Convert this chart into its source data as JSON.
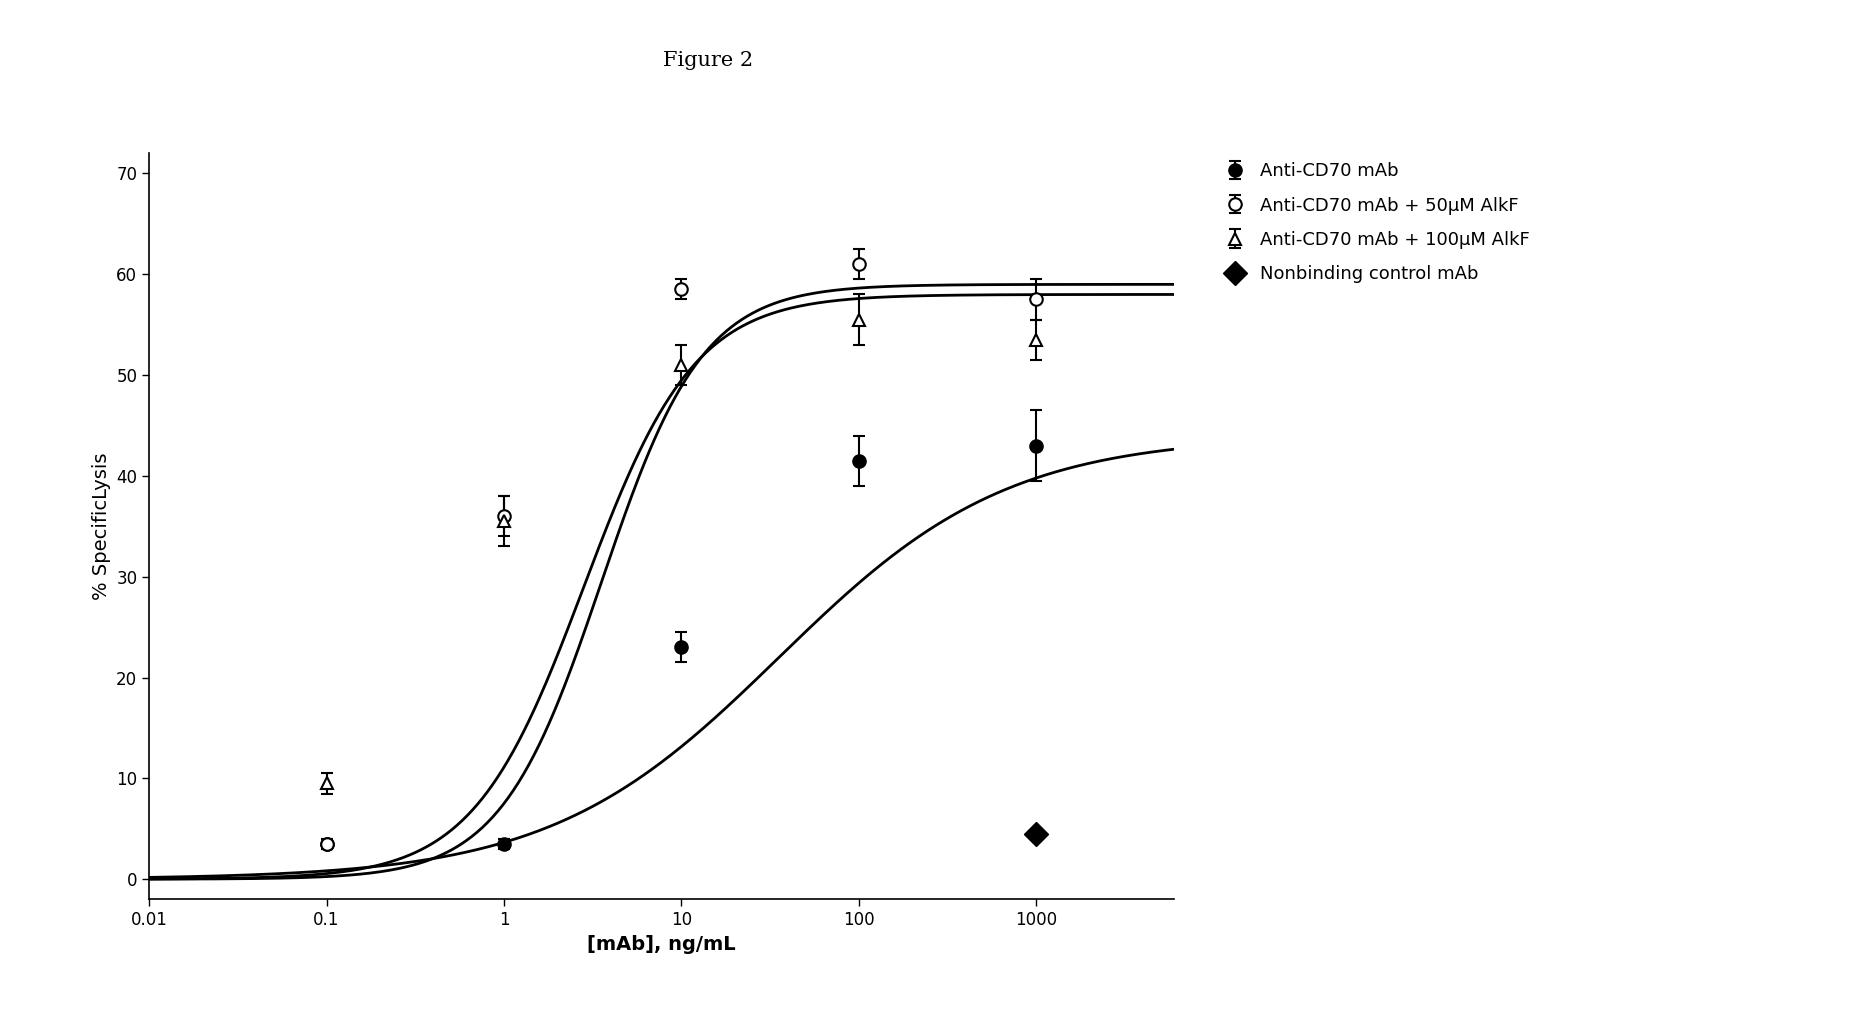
{
  "title": "Figure 2",
  "xlabel": "[mAb], ng/mL",
  "ylabel": "% SpecificLysis",
  "ylim": [
    -2,
    72
  ],
  "yticks": [
    0,
    10,
    20,
    30,
    40,
    50,
    60,
    70
  ],
  "xtick_vals": [
    0.01,
    0.1,
    1,
    10,
    100,
    1000
  ],
  "xtick_labels": [
    "0.01",
    "0.1",
    "1",
    "10",
    "100",
    "1000"
  ],
  "xlim": [
    0.01,
    6000
  ],
  "series": [
    {
      "label": "Anti-CD70 mAb",
      "marker": "o",
      "fillstyle": "full",
      "color": "black",
      "markersize": 9,
      "x": [
        0.1,
        1,
        10,
        100,
        1000
      ],
      "y": [
        3.5,
        3.5,
        23.0,
        41.5,
        43.0
      ],
      "yerr": [
        0.5,
        0.5,
        1.5,
        2.5,
        3.5
      ],
      "sigmoid_params": {
        "L": 44.0,
        "k": 1.55,
        "x0": 1.55
      }
    },
    {
      "label": "Anti-CD70 mAb + 50μM AlkF",
      "marker": "o",
      "fillstyle": "none",
      "color": "black",
      "markersize": 9,
      "x": [
        0.1,
        1,
        10,
        100,
        1000
      ],
      "y": [
        3.5,
        36.0,
        58.5,
        61.0,
        57.5
      ],
      "yerr": [
        0.5,
        2.0,
        1.0,
        1.5,
        2.0
      ],
      "sigmoid_params": {
        "L": 59.0,
        "k": 3.5,
        "x0": 0.55
      }
    },
    {
      "label": "Anti-CD70 mAb + 100μM AlkF",
      "marker": "^",
      "fillstyle": "none",
      "color": "black",
      "markersize": 9,
      "x": [
        0.1,
        1,
        10,
        100,
        1000
      ],
      "y": [
        9.5,
        35.5,
        51.0,
        55.5,
        53.5
      ],
      "yerr": [
        1.0,
        2.5,
        2.0,
        2.5,
        2.0
      ],
      "sigmoid_params": {
        "L": 58.0,
        "k": 3.2,
        "x0": 0.45
      }
    }
  ],
  "nonbinding": {
    "label": "Nonbinding control mAb",
    "marker": "D",
    "fillstyle": "full",
    "color": "black",
    "markersize": 12,
    "x": [
      1000
    ],
    "y": [
      4.5
    ]
  },
  "title_fontsize": 15,
  "axis_label_fontsize": 14,
  "tick_fontsize": 12,
  "legend_fontsize": 13
}
